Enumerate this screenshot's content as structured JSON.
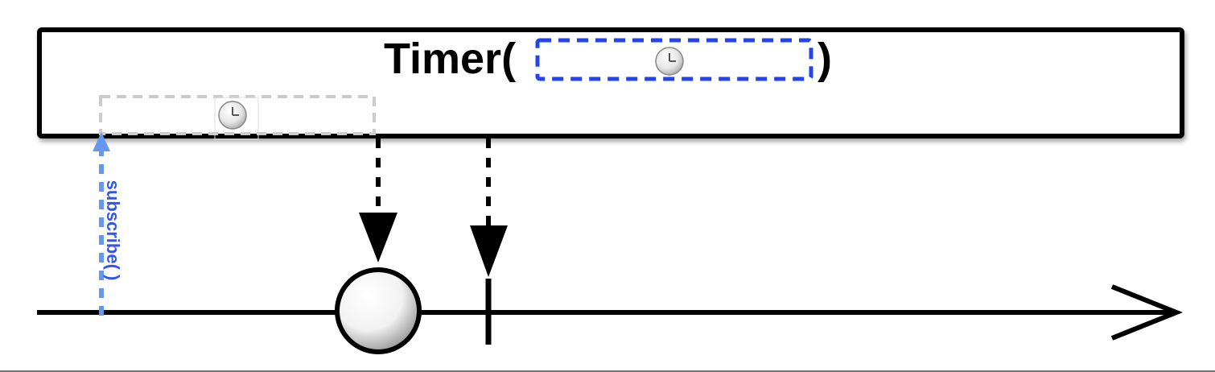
{
  "operator": {
    "title": "Timer(",
    "title_close": ")",
    "param_icon": "clock-icon"
  },
  "subscription": {
    "label": "subscribe( )",
    "color": "#3355ee",
    "arrow_color": "#6699ee",
    "delay_icon": "clock-icon"
  },
  "timeline": {
    "events": [
      {
        "kind": "item",
        "shape": "circle"
      },
      {
        "kind": "completion",
        "shape": "vertical-bar"
      }
    ]
  },
  "colors": {
    "stroke": "#000000",
    "param_border": "#2244ee",
    "delay_border": "#cccccc"
  }
}
